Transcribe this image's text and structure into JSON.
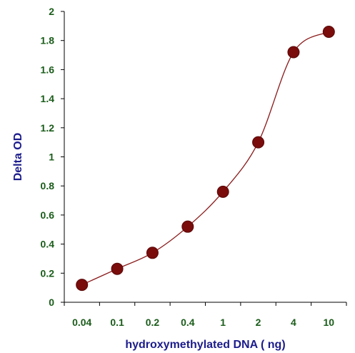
{
  "chart_data": {
    "type": "line",
    "title": "",
    "xlabel": "hydroxymethylated DNA ( ng)",
    "ylabel": "Delta OD",
    "categories": [
      "0.04",
      "0.1",
      "0.2",
      "0.4",
      "1",
      "2",
      "4",
      "10"
    ],
    "values": [
      0.12,
      0.23,
      0.34,
      0.52,
      0.76,
      1.1,
      1.72,
      1.86
    ],
    "ylim": [
      0,
      2
    ],
    "yticks": [
      "0",
      "0.2",
      "0.4",
      "0.6",
      "0.8",
      "1",
      "1.2",
      "1.4",
      "1.6",
      "1.8",
      "2"
    ],
    "grid": false,
    "legend": "none",
    "colors": {
      "line": "#8b1a1a",
      "marker": "#7a0c0c",
      "tick_labels": "#1a5c1a",
      "axis_titles": "#1c1c8c",
      "axes": "#000000"
    }
  }
}
